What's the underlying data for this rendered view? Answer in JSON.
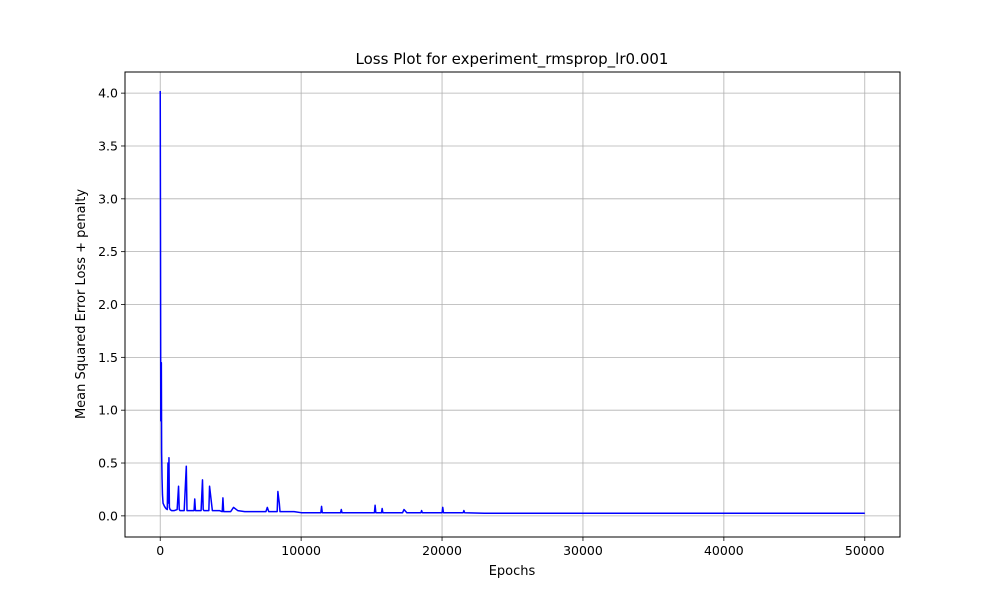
{
  "chart_data": {
    "type": "line",
    "title": "Loss Plot for experiment_rmsprop_lr0.001",
    "xlabel": "Epochs",
    "ylabel": "Mean Squared Error Loss + penalty",
    "xlim": [
      -2500,
      52500
    ],
    "ylim": [
      -0.2,
      4.2
    ],
    "xticks": [
      0,
      10000,
      20000,
      30000,
      40000,
      50000
    ],
    "yticks": [
      0.0,
      0.5,
      1.0,
      1.5,
      2.0,
      2.5,
      3.0,
      3.5,
      4.0
    ],
    "xtick_labels": [
      "0",
      "10000",
      "20000",
      "30000",
      "40000",
      "50000"
    ],
    "ytick_labels": [
      "0.0",
      "0.5",
      "1.0",
      "1.5",
      "2.0",
      "2.5",
      "3.0",
      "3.5",
      "4.0"
    ],
    "grid": true,
    "legend": "none",
    "series": [
      {
        "color": "#0000ff",
        "x": [
          0,
          20,
          40,
          80,
          100,
          130,
          160,
          200,
          300,
          400,
          500,
          550,
          600,
          620,
          650,
          700,
          800,
          1000,
          1200,
          1300,
          1350,
          1400,
          1500,
          1700,
          1850,
          1900,
          2000,
          2200,
          2400,
          2450,
          2500,
          2700,
          2900,
          3000,
          3050,
          3100,
          3300,
          3450,
          3500,
          3700,
          3900,
          4000,
          4200,
          4400,
          4450,
          4500,
          4700,
          5000,
          5200,
          5500,
          6000,
          6500,
          7000,
          7500,
          7600,
          7700,
          8000,
          8300,
          8350,
          8450,
          8500,
          9000,
          9500,
          10000,
          10500,
          11000,
          11400,
          11450,
          11500,
          12000,
          12800,
          12850,
          12900,
          13500,
          14500,
          14800,
          15000,
          15200,
          15250,
          15300,
          15700,
          15750,
          15800,
          16500,
          17000,
          17200,
          17300,
          17500,
          18500,
          18550,
          18600,
          19000,
          20000,
          20050,
          20100,
          21000,
          21500,
          21550,
          21600,
          23000,
          25000,
          28000,
          30000,
          33000,
          35000,
          38000,
          40000,
          43000,
          45000,
          48000,
          50000
        ],
        "y": [
          4.02,
          2.6,
          0.9,
          1.45,
          0.6,
          0.35,
          0.2,
          0.12,
          0.09,
          0.07,
          0.06,
          0.5,
          0.12,
          0.55,
          0.08,
          0.06,
          0.05,
          0.05,
          0.06,
          0.28,
          0.06,
          0.05,
          0.05,
          0.05,
          0.47,
          0.05,
          0.05,
          0.05,
          0.05,
          0.16,
          0.05,
          0.05,
          0.05,
          0.34,
          0.06,
          0.05,
          0.05,
          0.05,
          0.28,
          0.05,
          0.05,
          0.05,
          0.05,
          0.04,
          0.17,
          0.04,
          0.04,
          0.04,
          0.08,
          0.05,
          0.04,
          0.04,
          0.04,
          0.04,
          0.08,
          0.04,
          0.04,
          0.04,
          0.23,
          0.12,
          0.04,
          0.04,
          0.04,
          0.03,
          0.03,
          0.03,
          0.03,
          0.09,
          0.03,
          0.03,
          0.03,
          0.06,
          0.03,
          0.03,
          0.03,
          0.03,
          0.03,
          0.03,
          0.1,
          0.03,
          0.03,
          0.07,
          0.03,
          0.03,
          0.03,
          0.03,
          0.06,
          0.03,
          0.03,
          0.05,
          0.03,
          0.03,
          0.03,
          0.08,
          0.03,
          0.03,
          0.03,
          0.05,
          0.03,
          0.025,
          0.025,
          0.025,
          0.025,
          0.025,
          0.025,
          0.025,
          0.025,
          0.025,
          0.025,
          0.025,
          0.025
        ]
      }
    ]
  }
}
